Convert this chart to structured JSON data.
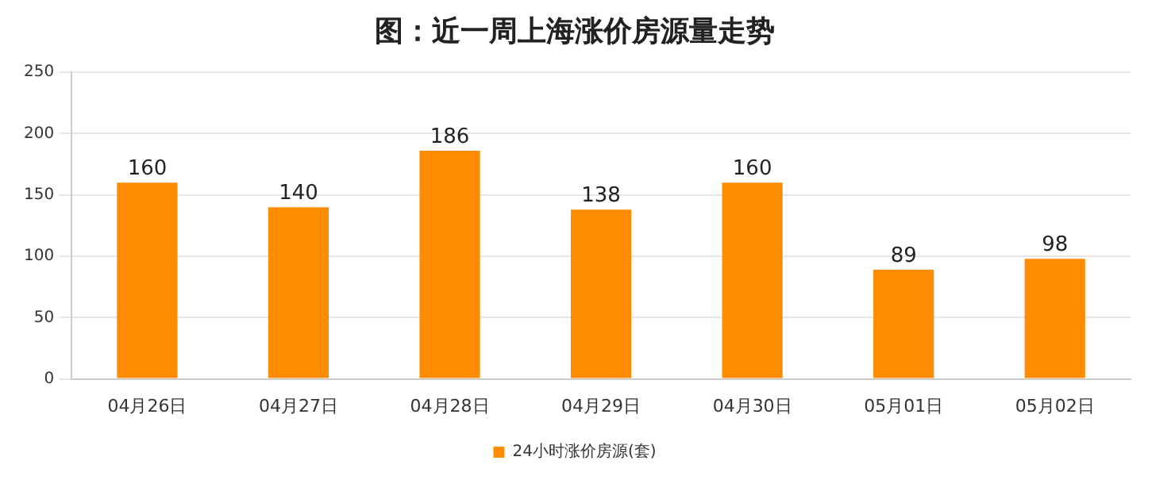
{
  "chart_data": {
    "type": "bar",
    "title": "图：近一周上海涨价房源量走势",
    "categories": [
      "04月26日",
      "04月27日",
      "04月28日",
      "04月29日",
      "04月30日",
      "05月01日",
      "05月02日"
    ],
    "series": [
      {
        "name": "24小时涨价房源(套)",
        "color": "#ff8c00",
        "values": [
          160,
          140,
          186,
          138,
          160,
          89,
          98
        ]
      }
    ],
    "ylim": [
      0,
      250
    ],
    "yticks": [
      0,
      50,
      100,
      150,
      200,
      250
    ],
    "grid": "y",
    "legend": "bottom",
    "data_labels": true
  }
}
